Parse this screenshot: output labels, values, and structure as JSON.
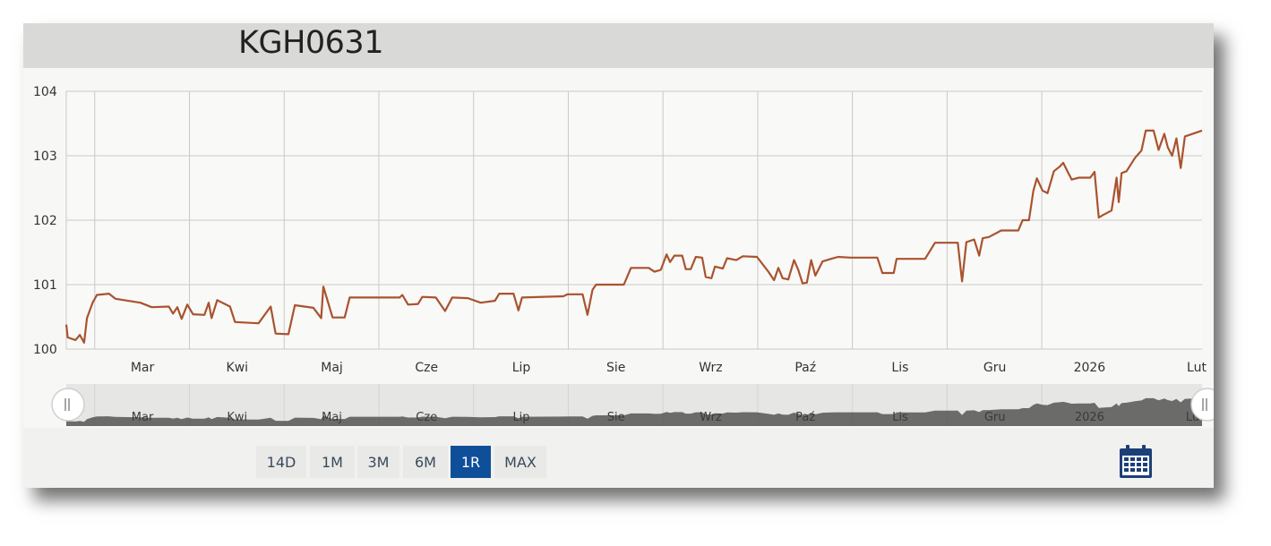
{
  "title": "KGH0631",
  "range_buttons": [
    {
      "label": "14D",
      "active": false
    },
    {
      "label": "1M",
      "active": false
    },
    {
      "label": "3M",
      "active": false
    },
    {
      "label": "6M",
      "active": false
    },
    {
      "label": "1R",
      "active": true
    },
    {
      "label": "MAX",
      "active": false
    }
  ],
  "colors": {
    "line": "#a9532e",
    "active_button": "#0f4f99",
    "navigator_fill": "#555555",
    "calendar_icon": "#1d3f78"
  },
  "icons": {
    "calendar": "calendar-icon",
    "navigator_left_handle": "grip-handle-icon",
    "navigator_right_handle": "grip-handle-icon"
  },
  "chart_data": {
    "type": "line",
    "title": "KGH0631",
    "xlabel": "",
    "ylabel": "",
    "ylim": [
      100,
      104
    ],
    "y_ticks": [
      "100",
      "101",
      "102",
      "103",
      "104"
    ],
    "x_tick_labels": [
      "Mar",
      "Kwi",
      "Maj",
      "Cze",
      "Lip",
      "Sie",
      "Wrz",
      "Paź",
      "Lis",
      "Gru",
      "2026",
      "Lut"
    ],
    "grid": true,
    "legend": "none",
    "navigator_labels": [
      "Mar",
      "Kwi",
      "Maj",
      "Cze",
      "Lip",
      "Sie",
      "Wrz",
      "Paź",
      "Lis",
      "Gru",
      "2026",
      "Lut"
    ],
    "series": [
      {
        "values": [
          [
            0.0,
            100.38
          ],
          [
            0.02,
            100.18
          ],
          [
            0.13,
            100.14
          ],
          [
            0.19,
            100.22
          ],
          [
            0.25,
            100.1
          ],
          [
            0.29,
            100.48
          ],
          [
            0.37,
            100.72
          ],
          [
            0.43,
            100.84
          ],
          [
            0.6,
            100.86
          ],
          [
            0.69,
            100.78
          ],
          [
            1.04,
            100.72
          ],
          [
            1.2,
            100.65
          ],
          [
            1.44,
            100.66
          ],
          [
            1.5,
            100.55
          ],
          [
            1.56,
            100.65
          ],
          [
            1.62,
            100.47
          ],
          [
            1.7,
            100.69
          ],
          [
            1.78,
            100.54
          ],
          [
            1.94,
            100.53
          ],
          [
            2.0,
            100.72
          ],
          [
            2.04,
            100.48
          ],
          [
            2.12,
            100.76
          ],
          [
            2.3,
            100.66
          ],
          [
            2.37,
            100.42
          ],
          [
            2.7,
            100.4
          ],
          [
            2.87,
            100.66
          ],
          [
            2.94,
            100.24
          ],
          [
            3.12,
            100.23
          ],
          [
            3.21,
            100.68
          ],
          [
            3.47,
            100.64
          ],
          [
            3.58,
            100.48
          ],
          [
            3.61,
            100.97
          ],
          [
            3.74,
            100.49
          ],
          [
            3.91,
            100.49
          ],
          [
            3.98,
            100.8
          ],
          [
            4.68,
            100.8
          ],
          [
            4.72,
            100.84
          ],
          [
            4.8,
            100.69
          ],
          [
            4.94,
            100.7
          ],
          [
            5.0,
            100.81
          ],
          [
            5.19,
            100.8
          ],
          [
            5.32,
            100.59
          ],
          [
            5.42,
            100.8
          ],
          [
            5.64,
            100.79
          ],
          [
            5.82,
            100.72
          ],
          [
            6.02,
            100.75
          ],
          [
            6.08,
            100.86
          ],
          [
            6.28,
            100.86
          ],
          [
            6.35,
            100.6
          ],
          [
            6.4,
            100.8
          ],
          [
            6.98,
            100.82
          ],
          [
            7.04,
            100.85
          ],
          [
            7.25,
            100.85
          ],
          [
            7.32,
            100.53
          ],
          [
            7.39,
            100.92
          ],
          [
            7.44,
            101.0
          ],
          [
            7.83,
            101.0
          ],
          [
            7.93,
            101.26
          ],
          [
            8.18,
            101.26
          ],
          [
            8.26,
            101.2
          ],
          [
            8.35,
            101.23
          ],
          [
            8.43,
            101.47
          ],
          [
            8.48,
            101.35
          ],
          [
            8.54,
            101.45
          ],
          [
            8.65,
            101.45
          ],
          [
            8.7,
            101.24
          ],
          [
            8.77,
            101.24
          ],
          [
            8.84,
            101.43
          ],
          [
            8.93,
            101.42
          ],
          [
            8.98,
            101.12
          ],
          [
            9.06,
            101.1
          ],
          [
            9.11,
            101.28
          ],
          [
            9.22,
            101.25
          ],
          [
            9.28,
            101.41
          ],
          [
            9.41,
            101.38
          ],
          [
            9.5,
            101.44
          ],
          [
            9.7,
            101.43
          ],
          [
            9.86,
            101.2
          ],
          [
            9.94,
            101.07
          ],
          [
            10.0,
            101.26
          ],
          [
            10.06,
            101.1
          ],
          [
            10.14,
            101.08
          ],
          [
            10.22,
            101.38
          ],
          [
            10.28,
            101.23
          ],
          [
            10.34,
            101.02
          ],
          [
            10.4,
            101.03
          ],
          [
            10.46,
            101.38
          ],
          [
            10.52,
            101.14
          ],
          [
            10.62,
            101.36
          ],
          [
            10.74,
            101.4
          ],
          [
            10.84,
            101.43
          ],
          [
            11.01,
            101.42
          ],
          [
            11.39,
            101.42
          ],
          [
            11.46,
            101.18
          ],
          [
            11.62,
            101.18
          ],
          [
            11.66,
            101.4
          ],
          [
            12.06,
            101.4
          ],
          [
            12.2,
            101.65
          ],
          [
            12.52,
            101.65
          ],
          [
            12.58,
            101.05
          ],
          [
            12.64,
            101.66
          ],
          [
            12.75,
            101.7
          ],
          [
            12.82,
            101.45
          ],
          [
            12.87,
            101.72
          ],
          [
            12.96,
            101.74
          ],
          [
            13.13,
            101.84
          ],
          [
            13.37,
            101.84
          ],
          [
            13.43,
            102.0
          ],
          [
            13.52,
            102.0
          ],
          [
            13.58,
            102.45
          ],
          [
            13.63,
            102.65
          ],
          [
            13.71,
            102.46
          ],
          [
            13.78,
            102.42
          ],
          [
            13.87,
            102.76
          ],
          [
            13.95,
            102.83
          ],
          [
            14.0,
            102.89
          ],
          [
            14.06,
            102.76
          ],
          [
            14.12,
            102.63
          ],
          [
            14.22,
            102.66
          ],
          [
            14.38,
            102.66
          ],
          [
            14.44,
            102.75
          ],
          [
            14.5,
            102.04
          ],
          [
            14.56,
            102.08
          ],
          [
            14.68,
            102.15
          ],
          [
            14.75,
            102.66
          ],
          [
            14.78,
            102.28
          ],
          [
            14.82,
            102.73
          ],
          [
            14.89,
            102.76
          ],
          [
            15.01,
            102.97
          ],
          [
            15.1,
            103.08
          ],
          [
            15.16,
            103.39
          ],
          [
            15.27,
            103.39
          ],
          [
            15.34,
            103.09
          ],
          [
            15.42,
            103.34
          ],
          [
            15.47,
            103.13
          ],
          [
            15.53,
            103.0
          ],
          [
            15.59,
            103.27
          ],
          [
            15.65,
            102.81
          ],
          [
            15.71,
            103.3
          ],
          [
            15.95,
            103.39
          ]
        ]
      }
    ]
  }
}
